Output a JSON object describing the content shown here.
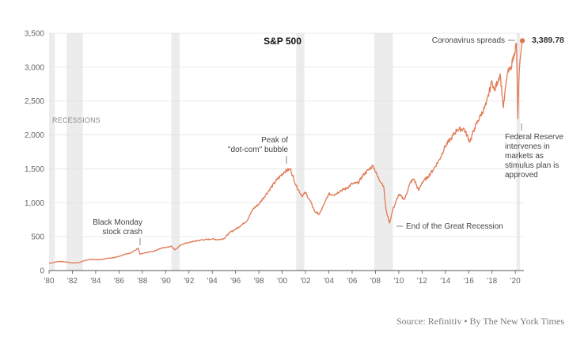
{
  "chart_data": {
    "type": "line",
    "title": "S&P 500",
    "xlabel": "",
    "ylabel": "",
    "x_range": [
      1980,
      2020.6
    ],
    "ylim": [
      0,
      3500
    ],
    "y_ticks": [
      0,
      500,
      1000,
      1500,
      2000,
      2500,
      3000,
      3500
    ],
    "y_tick_labels": [
      "0",
      "500",
      "1,000",
      "1,500",
      "2,000",
      "2,500",
      "3,000",
      "3,500"
    ],
    "x_ticks": [
      1980,
      1982,
      1984,
      1986,
      1988,
      1990,
      1992,
      1994,
      1996,
      1998,
      2000,
      2002,
      2004,
      2006,
      2008,
      2010,
      2012,
      2014,
      2016,
      2018,
      2020
    ],
    "x_tick_labels": [
      "'80",
      "'82",
      "'84",
      "'86",
      "'88",
      "'90",
      "'92",
      "'94",
      "'96",
      "'98",
      "'00",
      "'02",
      "'04",
      "'06",
      "'08",
      "'10",
      "'12",
      "'14",
      "'16",
      "'18",
      "'20"
    ],
    "grid": "horizontal",
    "line_color": "#e07a55",
    "recession_color": "#ececec",
    "recession_label": "RECESSIONS",
    "recessions": [
      [
        1980.0,
        1980.5
      ],
      [
        1981.5,
        1982.9
      ],
      [
        1990.5,
        1991.2
      ],
      [
        2001.2,
        2001.9
      ],
      [
        2007.9,
        2009.5
      ],
      [
        2020.1,
        2020.4
      ]
    ],
    "series": [
      {
        "x": [
          1980.0,
          1980.2,
          1980.5,
          1980.9,
          1981.3,
          1981.7,
          1982.0,
          1982.6,
          1982.9,
          1983.5,
          1984.0,
          1984.6,
          1985.0,
          1985.5,
          1986.0,
          1986.5,
          1987.0,
          1987.4,
          1987.65,
          1987.8,
          1988.0,
          1988.5,
          1989.0,
          1989.6,
          1990.0,
          1990.5,
          1990.8,
          1991.3,
          1992.0,
          1993.0,
          1994.0,
          1994.5,
          1995.0,
          1995.5,
          1996.0,
          1996.5,
          1997.0,
          1997.5,
          1998.0,
          1998.6,
          1998.9,
          1999.5,
          2000.2,
          2000.7,
          2001.2,
          2001.7,
          2002.0,
          2002.5,
          2002.8,
          2003.2,
          2003.6,
          2004.0,
          2004.5,
          2005.0,
          2005.5,
          2006.0,
          2006.5,
          2007.0,
          2007.5,
          2007.8,
          2008.2,
          2008.7,
          2008.9,
          2009.2,
          2009.5,
          2010.0,
          2010.5,
          2011.0,
          2011.3,
          2011.7,
          2012.0,
          2012.5,
          2013.0,
          2013.5,
          2014.0,
          2014.5,
          2015.0,
          2015.6,
          2016.1,
          2016.5,
          2017.0,
          2017.5,
          2018.0,
          2018.2,
          2018.7,
          2018.98,
          2019.3,
          2019.6,
          2019.9,
          2020.1,
          2020.22,
          2020.3,
          2020.4,
          2020.5,
          2020.6
        ],
        "values": [
          107,
          112,
          125,
          135,
          130,
          120,
          113,
          118,
          140,
          165,
          160,
          165,
          180,
          190,
          210,
          240,
          260,
          300,
          330,
          240,
          250,
          270,
          285,
          330,
          340,
          360,
          305,
          380,
          415,
          450,
          465,
          455,
          470,
          560,
          610,
          670,
          740,
          910,
          980,
          1120,
          1190,
          1330,
          1460,
          1500,
          1250,
          1100,
          1150,
          990,
          870,
          830,
          980,
          1130,
          1120,
          1180,
          1210,
          1280,
          1290,
          1420,
          1500,
          1550,
          1380,
          1250,
          900,
          700,
          900,
          1120,
          1050,
          1300,
          1350,
          1180,
          1300,
          1380,
          1500,
          1640,
          1840,
          1950,
          2080,
          2090,
          1900,
          2100,
          2280,
          2450,
          2800,
          2650,
          2900,
          2400,
          2900,
          2980,
          3200,
          3350,
          2240,
          2800,
          3100,
          3250,
          3389.78
        ]
      }
    ],
    "last_value_label": "3,389.78",
    "annotations": [
      {
        "lines": [
          "Black Monday",
          "stock crash"
        ]
      },
      {
        "lines": [
          "Peak of",
          "\"dot-com\" bubble"
        ]
      },
      {
        "lines": [
          "End of the Great Recession"
        ]
      },
      {
        "lines": [
          "Coronavirus spreads"
        ]
      },
      {
        "lines": [
          "Federal Reserve",
          "intervenes in",
          "markets as",
          "stimulus plan is",
          "approved"
        ]
      }
    ]
  },
  "source_text": "Source: Refinitiv • By The New York Times"
}
